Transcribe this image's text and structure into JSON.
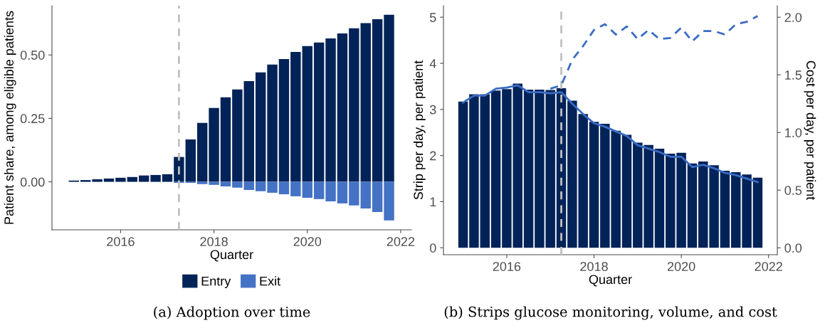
{
  "chart_data": [
    {
      "type": "bar",
      "title": "(a) Adoption over time",
      "xlabel": "Quarter",
      "ylabel": "Patient share, among eligible patients",
      "x": [
        2015.0,
        2015.25,
        2015.5,
        2015.75,
        2016.0,
        2016.25,
        2016.5,
        2016.75,
        2017.0,
        2017.25,
        2017.5,
        2017.75,
        2018.0,
        2018.25,
        2018.5,
        2018.75,
        2019.0,
        2019.25,
        2019.5,
        2019.75,
        2020.0,
        2020.25,
        2020.5,
        2020.75,
        2021.0,
        2021.25,
        2021.5,
        2021.75
      ],
      "series": [
        {
          "name": "Entry",
          "color": "#022358",
          "values": [
            0.005,
            0.007,
            0.01,
            0.013,
            0.016,
            0.019,
            0.025,
            0.027,
            0.03,
            0.098,
            0.167,
            0.232,
            0.291,
            0.333,
            0.364,
            0.397,
            0.431,
            0.462,
            0.484,
            0.512,
            0.535,
            0.549,
            0.565,
            0.585,
            0.605,
            0.625,
            0.641,
            0.658
          ]
        },
        {
          "name": "Exit",
          "color": "#4472c4",
          "values": [
            0,
            0,
            0,
            0,
            0,
            0,
            0,
            0,
            0,
            -0.004,
            -0.004,
            -0.009,
            -0.012,
            -0.018,
            -0.023,
            -0.032,
            -0.037,
            -0.043,
            -0.049,
            -0.057,
            -0.063,
            -0.068,
            -0.077,
            -0.085,
            -0.093,
            -0.105,
            -0.119,
            -0.152
          ]
        }
      ],
      "xlim": [
        2014.53,
        2022.23
      ],
      "xticks": [
        2016,
        2018,
        2020,
        2022
      ],
      "ylim": [
        -0.189,
        0.694
      ],
      "yticks": [
        {
          "value": 0,
          "label": "0.00"
        },
        {
          "value": 0.25,
          "label": "0.25"
        },
        {
          "value": 0.5,
          "label": "0.50"
        }
      ],
      "ref_lines": [
        {
          "axis": "x",
          "value": 2017.25,
          "color": "#c0c0c0",
          "line_style": "dashed"
        }
      ],
      "legend": "bottom",
      "grid": false,
      "stacked": true
    },
    {
      "type": "bar",
      "title": "(b) Strips glucose monitoring, volume, and cost",
      "xlabel": "Quarter",
      "ylabel": "Strip per day, per patient",
      "y2label": "Cost per day, per patient",
      "x": [
        2015.0,
        2015.25,
        2015.5,
        2015.75,
        2016.0,
        2016.25,
        2016.5,
        2016.75,
        2017.0,
        2017.25,
        2017.5,
        2017.75,
        2018.0,
        2018.25,
        2018.5,
        2018.75,
        2019.0,
        2019.25,
        2019.5,
        2019.75,
        2020.0,
        2020.25,
        2020.5,
        2020.75,
        2021.0,
        2021.25,
        2021.5,
        2021.75
      ],
      "series": [
        {
          "type": "bar",
          "color": "#022358",
          "values": [
            3.17,
            3.33,
            3.33,
            3.41,
            3.44,
            3.56,
            3.43,
            3.43,
            3.42,
            3.46,
            3.19,
            2.9,
            2.73,
            2.69,
            2.54,
            2.45,
            2.28,
            2.23,
            2.15,
            2.04,
            2.06,
            1.83,
            1.87,
            1.79,
            1.67,
            1.64,
            1.59,
            1.52
          ]
        },
        {
          "type": "line",
          "axis": "y2",
          "color": "#3a6cc4",
          "line_style": "solid",
          "values": [
            1.26,
            1.32,
            1.32,
            1.38,
            1.39,
            1.41,
            1.35,
            1.35,
            1.34,
            1.35,
            1.25,
            1.16,
            1.08,
            1.05,
            1.01,
            0.97,
            0.89,
            0.86,
            0.83,
            0.79,
            0.79,
            0.7,
            0.72,
            0.69,
            0.65,
            0.63,
            0.6,
            0.57
          ]
        },
        {
          "type": "line",
          "axis": "y2",
          "color": "#3a6cc4",
          "line_style": "dashed",
          "x": [
            2017.0,
            2017.25,
            2017.5,
            2017.75,
            2018.0,
            2018.25,
            2018.5,
            2018.75,
            2019.0,
            2019.25,
            2019.5,
            2019.75,
            2020.0,
            2020.25,
            2020.5,
            2020.75,
            2021.0,
            2021.25,
            2021.5,
            2021.75
          ],
          "values": [
            1.38,
            1.41,
            1.63,
            1.75,
            1.89,
            1.94,
            1.85,
            1.92,
            1.81,
            1.89,
            1.81,
            1.82,
            1.91,
            1.79,
            1.88,
            1.88,
            1.85,
            1.94,
            1.96,
            2.01
          ]
        }
      ],
      "xlim": [
        2014.55,
        2022.2
      ],
      "xticks": [
        2016,
        2018,
        2020,
        2022
      ],
      "ylim": [
        -0.15,
        5.25
      ],
      "yticks": [
        0,
        1,
        2,
        3,
        4,
        5
      ],
      "y2lim": [
        -0.06,
        2.1
      ],
      "y2ticks": [
        {
          "value": 0,
          "label": "0.0"
        },
        {
          "value": 0.5,
          "label": "0.5"
        },
        {
          "value": 1,
          "label": "1.0"
        },
        {
          "value": 1.5,
          "label": "1.5"
        },
        {
          "value": 2,
          "label": "2.0"
        }
      ],
      "ref_lines": [
        {
          "axis": "x",
          "value": 2017.25,
          "color": "#c0c0c0",
          "line_style": "dashed"
        }
      ],
      "legend": false,
      "grid": false
    }
  ]
}
